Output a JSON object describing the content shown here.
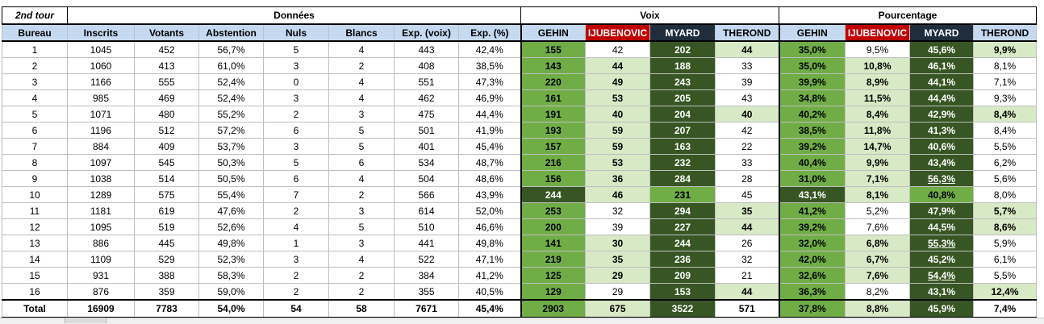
{
  "groups": {
    "tour": "2nd tour",
    "donnees": "Données",
    "voix": "Voix",
    "pourcentage": "Pourcentage"
  },
  "columns": [
    "Bureau",
    "Inscrits",
    "Votants",
    "Abstention",
    "Nuls",
    "Blancs",
    "Exp. (voix)",
    "Exp. (%)",
    "GEHIN",
    "IJUBENOVIC",
    "MYARD",
    "THEROND",
    "GEHIN",
    "IJUBENOVIC",
    "MYARD",
    "THEROND"
  ],
  "colors": {
    "header_blue": "#c5d9f1",
    "light_green": "#d8e9c6",
    "green": "#70ad47",
    "dark_green": "#375623",
    "red": "#c00000",
    "navy": "#1f2d3d"
  },
  "rows": [
    [
      "1",
      "1045",
      "452",
      "56,7%",
      "5",
      "4",
      "443",
      "42,4%",
      "155",
      "42",
      "202",
      "44",
      "35,0%",
      "9,5%",
      "45,6%",
      "9,9%"
    ],
    [
      "2",
      "1060",
      "413",
      "61,0%",
      "3",
      "2",
      "408",
      "38,5%",
      "143",
      "44",
      "188",
      "33",
      "35,0%",
      "10,8%",
      "46,1%",
      "8,1%"
    ],
    [
      "3",
      "1166",
      "555",
      "52,4%",
      "0",
      "4",
      "551",
      "47,3%",
      "220",
      "49",
      "243",
      "39",
      "39,9%",
      "8,9%",
      "44,1%",
      "7,1%"
    ],
    [
      "4",
      "985",
      "469",
      "52,4%",
      "3",
      "4",
      "462",
      "46,9%",
      "161",
      "53",
      "205",
      "43",
      "34,8%",
      "11,5%",
      "44,4%",
      "9,3%"
    ],
    [
      "5",
      "1071",
      "480",
      "55,2%",
      "2",
      "3",
      "475",
      "44,4%",
      "191",
      "40",
      "204",
      "40",
      "40,2%",
      "8,4%",
      "42,9%",
      "8,4%"
    ],
    [
      "6",
      "1196",
      "512",
      "57,2%",
      "6",
      "5",
      "501",
      "41,9%",
      "193",
      "59",
      "207",
      "42",
      "38,5%",
      "11,8%",
      "41,3%",
      "8,4%"
    ],
    [
      "7",
      "884",
      "409",
      "53,7%",
      "3",
      "5",
      "401",
      "45,4%",
      "157",
      "59",
      "163",
      "22",
      "39,2%",
      "14,7%",
      "40,6%",
      "5,5%"
    ],
    [
      "8",
      "1097",
      "545",
      "50,3%",
      "5",
      "6",
      "534",
      "48,7%",
      "216",
      "53",
      "232",
      "33",
      "40,4%",
      "9,9%",
      "43,4%",
      "6,2%"
    ],
    [
      "9",
      "1038",
      "514",
      "50,5%",
      "6",
      "4",
      "504",
      "48,6%",
      "156",
      "36",
      "284",
      "28",
      "31,0%",
      "7,1%",
      "56,3%",
      "5,6%"
    ],
    [
      "10",
      "1289",
      "575",
      "55,4%",
      "7",
      "2",
      "566",
      "43,9%",
      "244",
      "46",
      "231",
      "45",
      "43,1%",
      "8,1%",
      "40,8%",
      "8,0%"
    ],
    [
      "11",
      "1181",
      "619",
      "47,6%",
      "2",
      "3",
      "614",
      "52,0%",
      "253",
      "32",
      "294",
      "35",
      "41,2%",
      "5,2%",
      "47,9%",
      "5,7%"
    ],
    [
      "12",
      "1095",
      "519",
      "52,6%",
      "4",
      "5",
      "510",
      "46,6%",
      "200",
      "39",
      "227",
      "44",
      "39,2%",
      "7,6%",
      "44,5%",
      "8,6%"
    ],
    [
      "13",
      "886",
      "445",
      "49,8%",
      "1",
      "3",
      "441",
      "49,8%",
      "141",
      "30",
      "244",
      "26",
      "32,0%",
      "6,8%",
      "55,3%",
      "5,9%"
    ],
    [
      "14",
      "1109",
      "529",
      "52,3%",
      "3",
      "4",
      "522",
      "47,1%",
      "219",
      "35",
      "236",
      "32",
      "42,0%",
      "6,7%",
      "45,2%",
      "6,1%"
    ],
    [
      "15",
      "931",
      "388",
      "58,3%",
      "2",
      "2",
      "384",
      "41,2%",
      "125",
      "29",
      "209",
      "21",
      "32,6%",
      "7,6%",
      "54,4%",
      "5,5%"
    ],
    [
      "16",
      "876",
      "359",
      "59,0%",
      "2",
      "2",
      "355",
      "40,5%",
      "129",
      "29",
      "153",
      "44",
      "36,3%",
      "8,2%",
      "43,1%",
      "12,4%"
    ]
  ],
  "total": [
    "Total",
    "16909",
    "7783",
    "54,0%",
    "54",
    "58",
    "7671",
    "45,4%",
    "2903",
    "675",
    "3522",
    "571",
    "37,8%",
    "8,8%",
    "45,9%",
    "7,4%"
  ]
}
